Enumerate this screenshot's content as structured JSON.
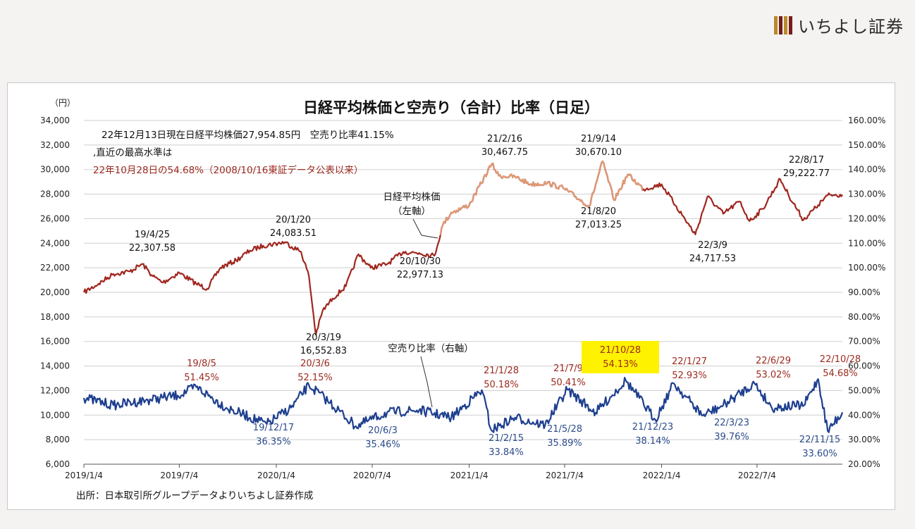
{
  "brand": {
    "name": "いちよし証券",
    "logo_colors": [
      "#b78a2c",
      "#7a1a1a",
      "#b78a2c",
      "#7a1a1a"
    ]
  },
  "colors": {
    "nikkei_line": "#a0261f",
    "nikkei_highlight": "#e8a878",
    "short_ratio_line": "#1e3f8f",
    "red_label": "#9b2a1f",
    "blue_label": "#2b4b8b",
    "highlight_box": "#fff200"
  },
  "chart_data": {
    "type": "line",
    "title": "日経平均株価と空売り（合計）比率（日足）",
    "left_axis": {
      "unit": "（円）",
      "ticks": [
        "34,000",
        "32,000",
        "30,000",
        "28,000",
        "26,000",
        "24,000",
        "22,000",
        "20,000",
        "18,000",
        "16,000",
        "14,000",
        "12,000",
        "10,000",
        "8,000",
        "6,000"
      ],
      "range": [
        6000,
        34000
      ]
    },
    "right_axis": {
      "ticks": [
        "160.00%",
        "150.00%",
        "140.00%",
        "130.00%",
        "120.00%",
        "110.00%",
        "100.00%",
        "90.00%",
        "80.00%",
        "70.00%",
        "60.00%",
        "50.00%",
        "40.00%",
        "30.00%",
        "20.00%"
      ],
      "range": [
        20,
        160
      ]
    },
    "x_range": [
      "2019-01-04",
      "2022-12-13"
    ],
    "x_ticks": [
      "2019/1/4",
      "2019/7/4",
      "2020/1/4",
      "2020/7/4",
      "2021/1/4",
      "2021/7/4",
      "2022/1/4",
      "2022/7/4"
    ],
    "x_tick_dates": [
      "2019-01-04",
      "2019-07-04",
      "2020-01-04",
      "2020-07-04",
      "2021-01-04",
      "2021-07-04",
      "2022-01-04",
      "2022-07-04"
    ],
    "grid": "horizontal",
    "info_lines": [
      "22年12月13日現在日経平均株価27,954.85円　空売り比率41.15%",
      ",直近の最高水準は",
      "22年10月28日の54.68%（2008/10/16東証データ公表以来）"
    ],
    "series": [
      {
        "name": "日経平均株価",
        "axis": "left",
        "x": [
          "2019-01-04",
          "2019-02-01",
          "2019-03-01",
          "2019-04-01",
          "2019-04-25",
          "2019-05-15",
          "2019-06-03",
          "2019-07-04",
          "2019-08-05",
          "2019-08-26",
          "2019-09-20",
          "2019-10-20",
          "2019-11-15",
          "2019-12-10",
          "2020-01-20",
          "2020-02-20",
          "2020-03-06",
          "2020-03-19",
          "2020-04-01",
          "2020-04-20",
          "2020-05-15",
          "2020-06-08",
          "2020-07-01",
          "2020-08-01",
          "2020-09-01",
          "2020-10-01",
          "2020-10-30",
          "2020-11-15",
          "2020-12-01",
          "2021-01-04",
          "2021-02-16",
          "2021-03-01",
          "2021-04-01",
          "2021-05-01",
          "2021-06-01",
          "2021-07-01",
          "2021-08-20",
          "2021-09-14",
          "2021-10-06",
          "2021-11-01",
          "2021-12-01",
          "2022-01-04",
          "2022-02-01",
          "2022-03-09",
          "2022-04-01",
          "2022-05-01",
          "2022-06-01",
          "2022-06-20",
          "2022-07-15",
          "2022-08-17",
          "2022-09-01",
          "2022-09-30",
          "2022-10-28",
          "2022-11-15",
          "2022-12-13"
        ],
        "values": [
          20000,
          20700,
          21500,
          21700,
          22307.58,
          21300,
          20800,
          21600,
          20700,
          20300,
          22000,
          22600,
          23400,
          23800,
          24083.51,
          23300,
          21300,
          16552.83,
          18500,
          19500,
          20500,
          23100,
          22000,
          22300,
          23300,
          23200,
          22977.13,
          25500,
          26500,
          27100,
          30467.75,
          29500,
          29400,
          28800,
          28900,
          28500,
          27013.25,
          30670.1,
          27500,
          29600,
          28400,
          28800,
          27000,
          24717.53,
          27800,
          26400,
          27400,
          25800,
          26800,
          29222.77,
          28000,
          25900,
          27100,
          27900,
          27954.85
        ]
      },
      {
        "name": "空売り比率（右軸）",
        "axis": "right",
        "x": [
          "2019-01-04",
          "2019-03-01",
          "2019-05-01",
          "2019-07-01",
          "2019-08-05",
          "2019-10-01",
          "2019-12-17",
          "2020-02-01",
          "2020-03-06",
          "2020-04-15",
          "2020-06-03",
          "2020-08-01",
          "2020-10-01",
          "2020-12-01",
          "2021-01-28",
          "2021-02-15",
          "2021-04-01",
          "2021-05-28",
          "2021-07-09",
          "2021-09-01",
          "2021-10-28",
          "2021-12-23",
          "2022-01-27",
          "2022-03-23",
          "2022-05-01",
          "2022-06-29",
          "2022-08-01",
          "2022-10-01",
          "2022-10-28",
          "2022-11-15",
          "2022-12-13"
        ],
        "values": [
          47,
          44,
          46,
          48,
          51.45,
          43,
          36.35,
          43,
          52.15,
          45,
          35.46,
          41,
          42,
          39,
          50.18,
          33.84,
          39,
          35.89,
          50.41,
          41,
          54.13,
          38.14,
          52.93,
          39.76,
          44,
          53.02,
          43,
          44,
          54.68,
          33.6,
          41.15
        ]
      }
    ],
    "annotations": {
      "nikkei_peaks": [
        {
          "date": "19/4/25",
          "value": "22,307.58"
        },
        {
          "date": "20/1/20",
          "value": "24,083.51"
        },
        {
          "date": "20/3/19",
          "value": "16,552.83"
        },
        {
          "date": "20/10/30",
          "value": "22,977.13"
        },
        {
          "date": "21/2/16",
          "value": "30,467.75"
        },
        {
          "date": "21/8/20",
          "value": "27,013.25"
        },
        {
          "date": "21/9/14",
          "value": "30,670.10"
        },
        {
          "date": "22/3/9",
          "value": "24,717.53"
        },
        {
          "date": "22/8/17",
          "value": "29,222.77"
        }
      ],
      "ratio_highs": [
        {
          "date": "19/8/5",
          "value": "51.45%"
        },
        {
          "date": "20/3/6",
          "value": "52.15%"
        },
        {
          "date": "21/1/28",
          "value": "50.18%"
        },
        {
          "date": "21/7/9",
          "value": "50.41%"
        },
        {
          "date": "21/10/28",
          "value": "54.13%",
          "highlighted": true
        },
        {
          "date": "22/1/27",
          "value": "52.93%"
        },
        {
          "date": "22/6/29",
          "value": "53.02%"
        },
        {
          "date": "22/10/28",
          "value": "54.68%"
        }
      ],
      "ratio_lows": [
        {
          "date": "19/12/17",
          "value": "36.35%"
        },
        {
          "date": "20/6/3",
          "value": "35.46%"
        },
        {
          "date": "21/2/15",
          "value": "33.84%"
        },
        {
          "date": "21/5/28",
          "value": "35.89%"
        },
        {
          "date": "21/12/23",
          "value": "38.14%"
        },
        {
          "date": "22/3/23",
          "value": "39.76%"
        },
        {
          "date": "22/11/15",
          "value": "33.60%"
        }
      ],
      "callouts": {
        "nikkei": [
          "日経平均株価",
          "（左軸）"
        ],
        "ratio": "空売り比率（右軸）"
      }
    },
    "source": "出所：日本取引所グループデータよりいちよし証券作成"
  }
}
